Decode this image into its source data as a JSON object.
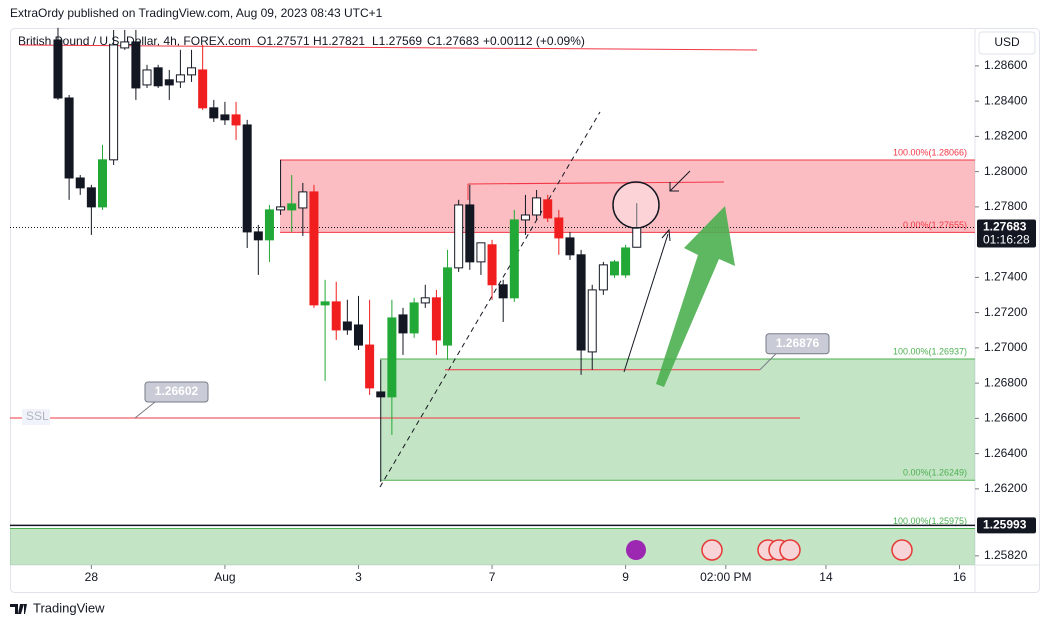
{
  "header": {
    "publisher": "ExtraOrdy published on TradingView.com, Aug 09, 2023 08:43 UTC+1"
  },
  "chart_data": {
    "type": "candlestick",
    "symbol": "British Pound / U.S. Dollar, 4h, FOREX.com",
    "legend_items": [
      "O1.27571",
      "H1.27821",
      "L1.27569",
      "C1.27683",
      "+0.00112 (+0.09%)"
    ],
    "currency": "USD",
    "open": [
      1.28747,
      1.28418,
      1.27964,
      1.27908,
      1.278,
      1.28067,
      1.28702,
      1.28736,
      1.28492,
      1.28589,
      1.28521,
      1.28509,
      1.28549,
      1.28577,
      1.28362,
      1.28322,
      1.28322,
      1.28265,
      1.27658,
      1.27613,
      1.27783,
      1.27783,
      1.27794,
      1.27885,
      1.27244,
      1.27261,
      1.27147,
      1.2713,
      1.27016,
      1.2675,
      1.26722,
      1.27187,
      1.27085,
      1.27255,
      1.27284,
      1.27016,
      1.27454,
      1.27811,
      1.27488,
      1.27585,
      1.27358,
      1.27284,
      1.27726,
      1.27754,
      1.2784,
      1.27737,
      1.27624,
      1.27528,
      1.26977,
      1.27329,
      1.27414,
      1.27414,
      1.27571
    ],
    "high": [
      1.28816,
      1.28435,
      1.27981,
      1.27925,
      1.28152,
      1.28804,
      1.28804,
      1.28804,
      1.28606,
      1.28606,
      1.28577,
      1.28691,
      1.28691,
      1.28719,
      1.28407,
      1.28396,
      1.28396,
      1.28294,
      1.27698,
      1.27811,
      1.28067,
      1.27981,
      1.27936,
      1.27925,
      1.27386,
      1.27375,
      1.27273,
      1.27295,
      1.27273,
      1.26932,
      1.27273,
      1.27227,
      1.27284,
      1.27358,
      1.27329,
      1.27556,
      1.2784,
      1.27925,
      1.27596,
      1.27613,
      1.27386,
      1.27783,
      1.27868,
      1.27896,
      1.27868,
      1.27783,
      1.27658,
      1.27556,
      1.27358,
      1.27488,
      1.27499,
      1.27585,
      1.27821
    ],
    "low": [
      1.28407,
      1.2784,
      1.27868,
      1.27641,
      1.27783,
      1.28038,
      1.28691,
      1.28407,
      1.28475,
      1.28475,
      1.28407,
      1.28475,
      1.28509,
      1.2835,
      1.28282,
      1.28265,
      1.2818,
      1.27567,
      1.27414,
      1.27488,
      1.27754,
      1.27658,
      1.27635,
      1.27227,
      1.26813,
      1.27045,
      1.27074,
      1.26988,
      1.26733,
      1.2624,
      1.26506,
      1.2696,
      1.27057,
      1.27227,
      1.2696,
      1.26932,
      1.27431,
      1.27443,
      1.27414,
      1.27273,
      1.27147,
      1.27261,
      1.27641,
      1.27726,
      1.27714,
      1.27528,
      1.27499,
      1.26847,
      1.26875,
      1.27301,
      1.27397,
      1.27397,
      1.27569
    ],
    "close": [
      1.28418,
      1.27964,
      1.27908,
      1.278,
      1.28067,
      1.28719,
      1.28736,
      1.28475,
      1.28577,
      1.28487,
      1.28492,
      1.28549,
      1.28589,
      1.28362,
      1.28305,
      1.28294,
      1.28265,
      1.27658,
      1.27613,
      1.27783,
      1.278,
      1.27817,
      1.27885,
      1.27244,
      1.27261,
      1.27102,
      1.27102,
      1.27016,
      1.26773,
      1.26722,
      1.2717,
      1.27085,
      1.27255,
      1.27284,
      1.27045,
      1.27454,
      1.27811,
      1.27488,
      1.27596,
      1.27358,
      1.27284,
      1.27726,
      1.27754,
      1.27851,
      1.27737,
      1.27624,
      1.27528,
      1.26988,
      1.27329,
      1.27471,
      1.27488,
      1.27567,
      1.27683
    ],
    "colors": [
      "#131722",
      "#131722",
      "#131722",
      "#131722",
      "#22a836",
      "#ffffff",
      "#ffffff",
      "#131722",
      "#ffffff",
      "#131722",
      "#131722",
      "#ffffff",
      "#ffffff",
      "#f01e1e",
      "#131722",
      "#131722",
      "#f01e1e",
      "#131722",
      "#131722",
      "#22a836",
      "#ffffff",
      "#22a836",
      "#ffffff",
      "#f01e1e",
      "#22a836",
      "#f01e1e",
      "#131722",
      "#131722",
      "#f01e1e",
      "#131722",
      "#22a836",
      "#131722",
      "#22a836",
      "#ffffff",
      "#f01e1e",
      "#22a836",
      "#ffffff",
      "#131722",
      "#ffffff",
      "#f01e1e",
      "#131722",
      "#22a836",
      "#ffffff",
      "#ffffff",
      "#f01e1e",
      "#f01e1e",
      "#131722",
      "#131722",
      "#ffffff",
      "#ffffff",
      "#22a836",
      "#22a836",
      "#ffffff"
    ],
    "xlim": [
      -4.31,
      82.39
    ],
    "xticks": [
      {
        "value": 3,
        "label": "28"
      },
      {
        "value": 15,
        "label": "Aug"
      },
      {
        "value": 27,
        "label": "3"
      },
      {
        "value": 39,
        "label": "7"
      },
      {
        "value": 51,
        "label": "9"
      },
      {
        "value": 60,
        "label": "02:00 PM"
      },
      {
        "value": 69,
        "label": "14"
      },
      {
        "value": 81,
        "label": "16"
      }
    ],
    "ylim": [
      1.25768,
      1.28815
    ],
    "yticks": [
      {
        "value": 1.286,
        "label": "1.28600"
      },
      {
        "value": 1.284,
        "label": "1.28400"
      },
      {
        "value": 1.282,
        "label": "1.28200"
      },
      {
        "value": 1.28,
        "label": "1.28000"
      },
      {
        "value": 1.278,
        "label": "1.27800"
      },
      {
        "value": 1.274,
        "label": "1.27400"
      },
      {
        "value": 1.272,
        "label": "1.27200"
      },
      {
        "value": 1.27,
        "label": "1.27000"
      },
      {
        "value": 1.268,
        "label": "1.26800"
      },
      {
        "value": 1.266,
        "label": "1.26600"
      },
      {
        "value": 1.264,
        "label": "1.26400"
      },
      {
        "value": 1.262,
        "label": "1.26200"
      },
      {
        "value": 1.2582,
        "label": "1.25820"
      }
    ],
    "last_price": {
      "value": 1.27683,
      "label": "1.27683",
      "countdown": "01:16:28"
    },
    "marker": {
      "value": 1.25993,
      "label": "1.25993"
    },
    "zones": [
      {
        "top": 1.28066,
        "bottom": 1.27655,
        "top_label": "100.00%(1.28066)",
        "bottom_label": "0.00%(1.27655)",
        "color": "#f23645"
      },
      {
        "top": 1.26937,
        "bottom": 1.26249,
        "top_label": "100.00%(1.26937)",
        "bottom_label": "0.00%(1.26249)",
        "color": "#4caf50"
      },
      {
        "top": 1.25975,
        "top_label": "100.00%(1.25975)",
        "color": "#4caf50"
      }
    ],
    "levels": [
      {
        "value": 1.26602,
        "label": "1.26602",
        "name": "SSL"
      },
      {
        "value": 1.26876,
        "label": "1.26876"
      }
    ]
  },
  "footer": {
    "brand": "TradingView"
  }
}
